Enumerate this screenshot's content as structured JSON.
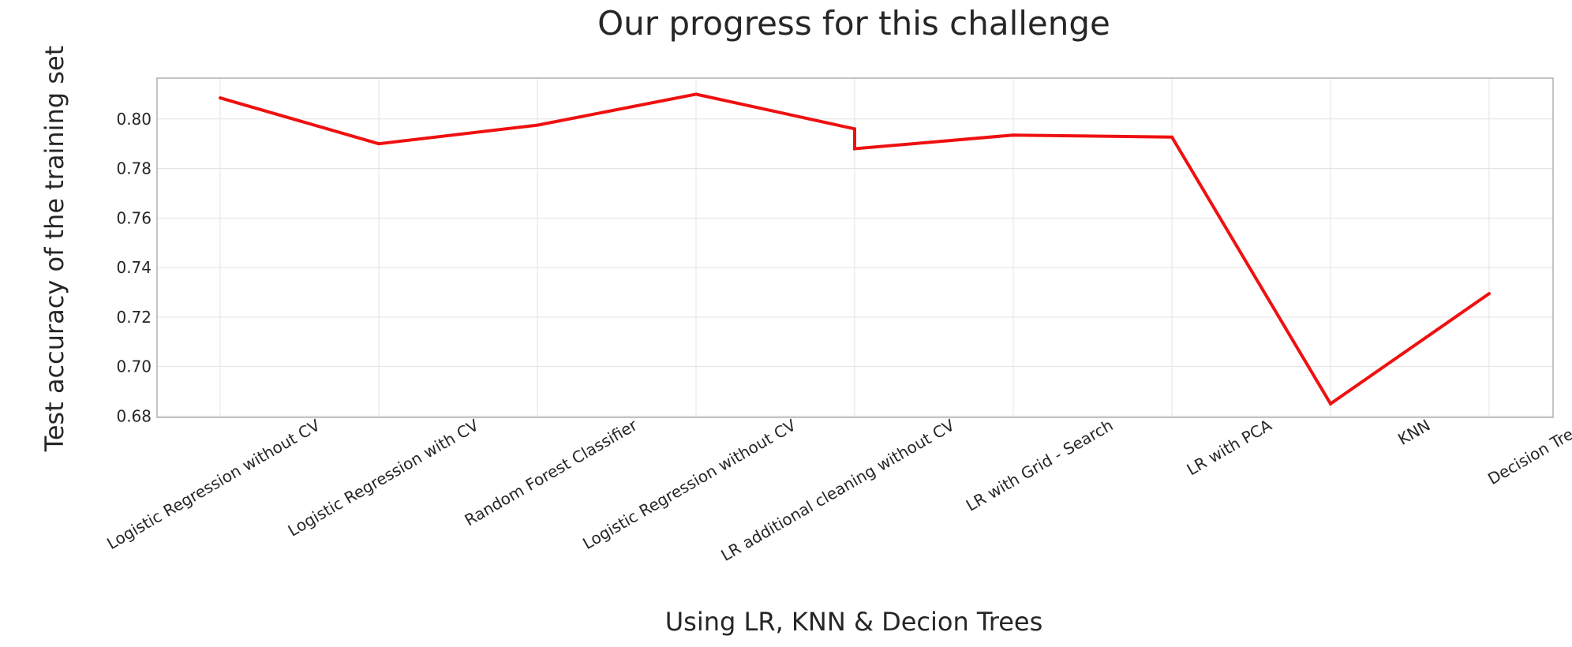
{
  "chart_data": {
    "type": "line",
    "title": "Our progress for this challenge",
    "xlabel": "Using LR, KNN & Decion Trees",
    "ylabel": "Test accuracy of the training set",
    "categories": [
      "Logistic Regression without CV",
      "Logistic Regression with CV",
      "Random Forest Classifier",
      "Logistic Regression without CV",
      "LR additional cleaning without CV",
      "LR with Grid - Search",
      "LR with PCA",
      "KNN",
      "Decision Trees"
    ],
    "points": [
      {
        "x": 0,
        "y": 0.8085
      },
      {
        "x": 1,
        "y": 0.79
      },
      {
        "x": 2,
        "y": 0.7975
      },
      {
        "x": 3,
        "y": 0.81
      },
      {
        "x": 4,
        "y": 0.796
      },
      {
        "x": 4,
        "y": 0.788
      },
      {
        "x": 5,
        "y": 0.7935
      },
      {
        "x": 6,
        "y": 0.7927
      },
      {
        "x": 7,
        "y": 0.685
      },
      {
        "x": 8,
        "y": 0.7295
      }
    ],
    "yticks": [
      "0.68",
      "0.70",
      "0.72",
      "0.74",
      "0.76",
      "0.78",
      "0.80"
    ],
    "ylim": [
      0.6795,
      0.8165
    ],
    "grid": true,
    "line_color": "#ef1010"
  }
}
